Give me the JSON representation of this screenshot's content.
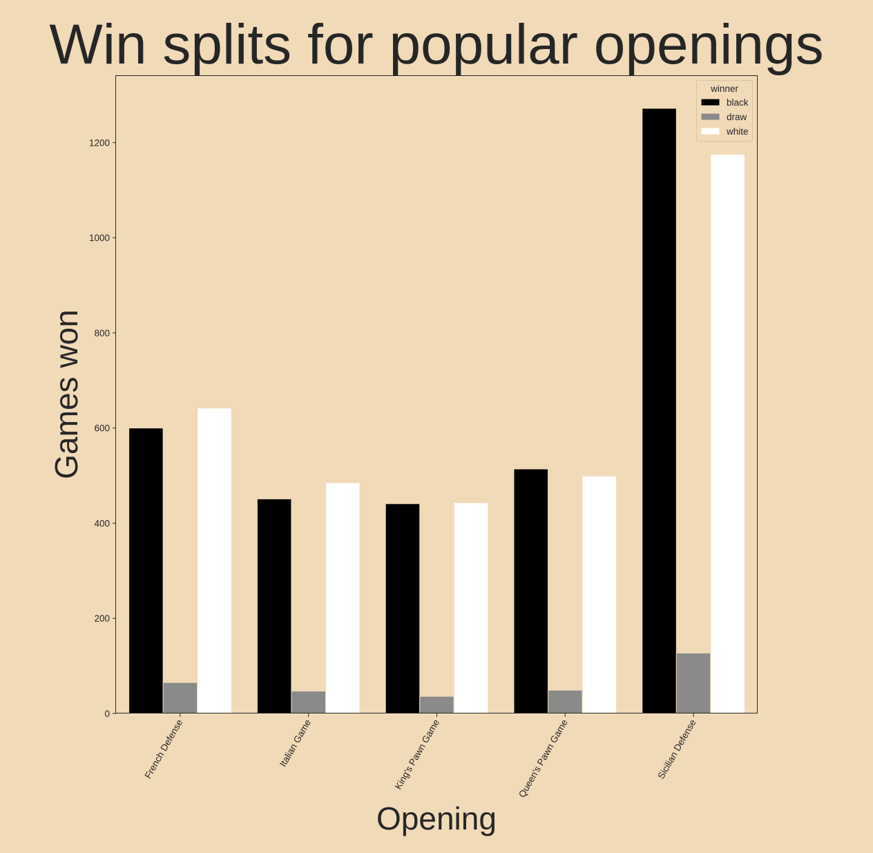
{
  "chart_data": {
    "type": "bar",
    "title": "Win splits for popular openings",
    "xlabel": "Opening",
    "ylabel": "Games won",
    "ylim": [
      0,
      1340
    ],
    "yticks": [
      0,
      200,
      400,
      600,
      800,
      1000,
      1200
    ],
    "categories": [
      "French Defense",
      "Italian Game",
      "King's Pawn Game",
      "Queen's Pawn Game",
      "Sicilian Defense"
    ],
    "legend": {
      "title": "winner",
      "placement": "top-right"
    },
    "series": [
      {
        "name": "black",
        "color": "#000000",
        "values": [
          600,
          451,
          441,
          514,
          1272
        ]
      },
      {
        "name": "draw",
        "color": "#8a8a8a",
        "values": [
          65,
          47,
          36,
          49,
          127
        ]
      },
      {
        "name": "white",
        "color": "#ffffff",
        "values": [
          642,
          485,
          443,
          499,
          1175
        ]
      }
    ],
    "grid": false,
    "background_color": "#f1dab8"
  }
}
